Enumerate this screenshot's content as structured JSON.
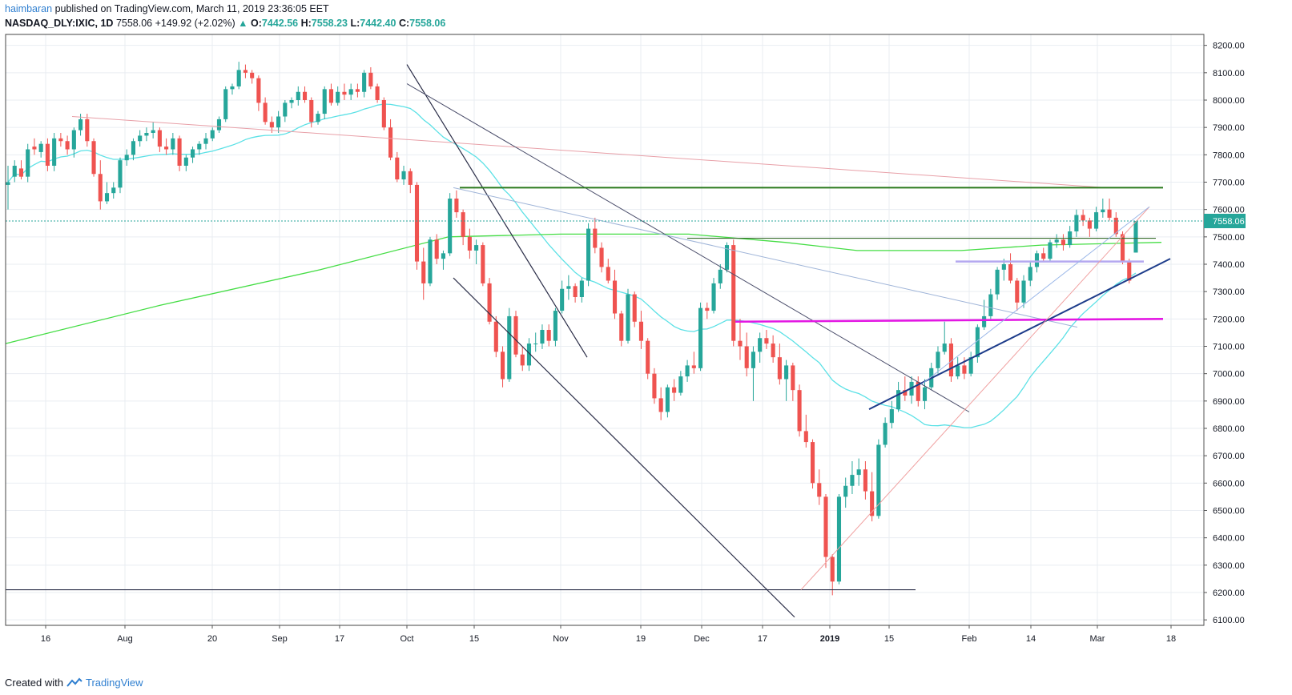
{
  "header": {
    "author": "haimbaran",
    "published_text": "published on TradingView.com, March 11, 2019 23:36:05 EET",
    "symbol": "NASDAQ_DLY:IXIC, 1D",
    "last": "7558.06",
    "change": "+149.92 (+2.02%)",
    "open_label": "O:",
    "open": "7442.56",
    "high_label": "H:",
    "high": "7558.23",
    "low_label": "L:",
    "low": "7442.40",
    "close_label": "C:",
    "close": "7558.06"
  },
  "footer": {
    "created_with": "Created with",
    "brand": "TradingView"
  },
  "colors": {
    "up": "#26a69a",
    "down": "#ef5350",
    "ma_short": "#5ce1e6",
    "ma_long": "#44dd44",
    "grid": "#e9edf2",
    "magenta": "#e317e3",
    "navy": "#1d3c8a",
    "dark_green": "#2a7a1e",
    "lavender": "#b4a8f0",
    "pink_line": "#e8a0a8",
    "price_tag": "#26a69a"
  },
  "chart_data": {
    "type": "candlestick",
    "symbol": "NASDAQ_DLY:IXIC",
    "interval": "1D",
    "y_range": [
      6080,
      8240
    ],
    "y_ticks": [
      "8200.00",
      "8100.00",
      "8000.00",
      "7900.00",
      "7800.00",
      "7700.00",
      "7600.00",
      "7500.00",
      "7400.00",
      "7300.00",
      "7200.00",
      "7100.00",
      "7000.00",
      "6900.00",
      "6800.00",
      "6700.00",
      "6600.00",
      "6500.00",
      "6400.00",
      "6300.00",
      "6200.00",
      "6100.00"
    ],
    "x_ticks": [
      "16",
      "Aug",
      "20",
      "Sep",
      "17",
      "Oct",
      "15",
      "Nov",
      "19",
      "Dec",
      "17",
      "2019",
      "15",
      "Feb",
      "14",
      "Mar",
      "18"
    ],
    "last_price_label": "7558.06",
    "ohlc": [
      [
        7690,
        7760,
        7600,
        7700
      ],
      [
        7720,
        7780,
        7700,
        7760
      ],
      [
        7750,
        7780,
        7710,
        7720
      ],
      [
        7720,
        7840,
        7700,
        7820
      ],
      [
        7830,
        7860,
        7800,
        7820
      ],
      [
        7810,
        7850,
        7790,
        7840
      ],
      [
        7840,
        7860,
        7740,
        7760
      ],
      [
        7760,
        7880,
        7740,
        7860
      ],
      [
        7860,
        7880,
        7830,
        7850
      ],
      [
        7850,
        7870,
        7800,
        7820
      ],
      [
        7820,
        7900,
        7790,
        7890
      ],
      [
        7890,
        7950,
        7870,
        7930
      ],
      [
        7930,
        7950,
        7830,
        7850
      ],
      [
        7850,
        7860,
        7720,
        7730
      ],
      [
        7730,
        7780,
        7600,
        7630
      ],
      [
        7630,
        7700,
        7620,
        7660
      ],
      [
        7660,
        7700,
        7640,
        7680
      ],
      [
        7680,
        7790,
        7660,
        7780
      ],
      [
        7780,
        7820,
        7760,
        7800
      ],
      [
        7800,
        7860,
        7780,
        7850
      ],
      [
        7850,
        7890,
        7830,
        7870
      ],
      [
        7870,
        7900,
        7850,
        7880
      ],
      [
        7880,
        7920,
        7860,
        7890
      ],
      [
        7890,
        7900,
        7810,
        7830
      ],
      [
        7830,
        7860,
        7800,
        7820
      ],
      [
        7820,
        7880,
        7800,
        7860
      ],
      [
        7860,
        7870,
        7740,
        7760
      ],
      [
        7760,
        7800,
        7740,
        7790
      ],
      [
        7790,
        7830,
        7770,
        7820
      ],
      [
        7820,
        7850,
        7800,
        7840
      ],
      [
        7840,
        7880,
        7820,
        7860
      ],
      [
        7860,
        7900,
        7850,
        7890
      ],
      [
        7890,
        7940,
        7880,
        7930
      ],
      [
        7930,
        8050,
        7920,
        8040
      ],
      [
        8040,
        8060,
        8020,
        8050
      ],
      [
        8050,
        8140,
        8040,
        8110
      ],
      [
        8110,
        8130,
        8080,
        8100
      ],
      [
        8100,
        8110,
        8060,
        8080
      ],
      [
        8080,
        8090,
        7960,
        7990
      ],
      [
        7990,
        8010,
        7910,
        7920
      ],
      [
        7920,
        7940,
        7880,
        7900
      ],
      [
        7900,
        7960,
        7880,
        7940
      ],
      [
        7940,
        8000,
        7920,
        7990
      ],
      [
        7990,
        8010,
        7970,
        8000
      ],
      [
        8000,
        8050,
        7980,
        8030
      ],
      [
        8030,
        8050,
        7990,
        8000
      ],
      [
        8000,
        8010,
        7900,
        7920
      ],
      [
        7920,
        7960,
        7910,
        7950
      ],
      [
        7950,
        8050,
        7930,
        8040
      ],
      [
        8040,
        8060,
        7980,
        7990
      ],
      [
        7990,
        8050,
        7980,
        8030
      ],
      [
        8030,
        8060,
        8000,
        8020
      ],
      [
        8020,
        8060,
        8000,
        8040
      ],
      [
        8040,
        8060,
        8010,
        8030
      ],
      [
        8030,
        8110,
        8010,
        8100
      ],
      [
        8100,
        8120,
        8040,
        8050
      ],
      [
        8050,
        8060,
        7990,
        8000
      ],
      [
        8000,
        8010,
        7890,
        7900
      ],
      [
        7900,
        7930,
        7780,
        7790
      ],
      [
        7790,
        7810,
        7700,
        7710
      ],
      [
        7710,
        7760,
        7690,
        7740
      ],
      [
        7740,
        7750,
        7660,
        7690
      ],
      [
        7690,
        7700,
        7380,
        7410
      ],
      [
        7410,
        7460,
        7270,
        7330
      ],
      [
        7330,
        7500,
        7320,
        7490
      ],
      [
        7490,
        7510,
        7400,
        7420
      ],
      [
        7420,
        7450,
        7380,
        7440
      ],
      [
        7440,
        7660,
        7430,
        7640
      ],
      [
        7640,
        7670,
        7570,
        7590
      ],
      [
        7590,
        7600,
        7470,
        7500
      ],
      [
        7500,
        7530,
        7420,
        7450
      ],
      [
        7450,
        7490,
        7400,
        7470
      ],
      [
        7470,
        7480,
        7320,
        7330
      ],
      [
        7330,
        7350,
        7180,
        7190
      ],
      [
        7190,
        7210,
        7060,
        7080
      ],
      [
        7080,
        7100,
        6950,
        6980
      ],
      [
        6980,
        7240,
        6970,
        7210
      ],
      [
        7210,
        7230,
        7060,
        7070
      ],
      [
        7070,
        7100,
        7010,
        7030
      ],
      [
        7030,
        7130,
        7010,
        7110
      ],
      [
        7110,
        7150,
        7080,
        7110
      ],
      [
        7110,
        7180,
        7090,
        7160
      ],
      [
        7160,
        7180,
        7100,
        7120
      ],
      [
        7120,
        7240,
        7100,
        7230
      ],
      [
        7230,
        7340,
        7220,
        7310
      ],
      [
        7310,
        7360,
        7270,
        7320
      ],
      [
        7320,
        7330,
        7260,
        7280
      ],
      [
        7280,
        7350,
        7260,
        7340
      ],
      [
        7340,
        7550,
        7320,
        7530
      ],
      [
        7530,
        7570,
        7440,
        7460
      ],
      [
        7460,
        7480,
        7370,
        7390
      ],
      [
        7390,
        7420,
        7330,
        7340
      ],
      [
        7340,
        7380,
        7200,
        7220
      ],
      [
        7220,
        7230,
        7100,
        7120
      ],
      [
        7120,
        7310,
        7110,
        7290
      ],
      [
        7290,
        7300,
        7170,
        7190
      ],
      [
        7190,
        7230,
        7090,
        7120
      ],
      [
        7120,
        7130,
        6980,
        7000
      ],
      [
        7000,
        7020,
        6890,
        6910
      ],
      [
        6910,
        6950,
        6830,
        6860
      ],
      [
        6860,
        6960,
        6840,
        6950
      ],
      [
        6950,
        6980,
        6900,
        6930
      ],
      [
        6930,
        7010,
        6920,
        6990
      ],
      [
        6990,
        7050,
        6970,
        7030
      ],
      [
        7030,
        7080,
        7000,
        7020
      ],
      [
        7020,
        7260,
        7010,
        7240
      ],
      [
        7240,
        7260,
        7200,
        7230
      ],
      [
        7230,
        7350,
        7220,
        7330
      ],
      [
        7330,
        7400,
        7310,
        7380
      ],
      [
        7380,
        7480,
        7370,
        7470
      ],
      [
        7470,
        7490,
        7100,
        7120
      ],
      [
        7120,
        7200,
        7050,
        7100
      ],
      [
        7100,
        7150,
        6990,
        7020
      ],
      [
        7020,
        7100,
        6900,
        7080
      ],
      [
        7080,
        7150,
        7040,
        7130
      ],
      [
        7130,
        7160,
        7090,
        7110
      ],
      [
        7110,
        7140,
        7040,
        7060
      ],
      [
        7060,
        7110,
        6960,
        6980
      ],
      [
        6980,
        7050,
        6900,
        7030
      ],
      [
        7030,
        7040,
        6900,
        6940
      ],
      [
        6940,
        6960,
        6770,
        6790
      ],
      [
        6790,
        6850,
        6730,
        6750
      ],
      [
        6750,
        6760,
        6580,
        6600
      ],
      [
        6600,
        6650,
        6520,
        6550
      ],
      [
        6550,
        6560,
        6290,
        6330
      ],
      [
        6330,
        6340,
        6190,
        6240
      ],
      [
        6240,
        6560,
        6230,
        6550
      ],
      [
        6550,
        6620,
        6510,
        6590
      ],
      [
        6590,
        6680,
        6560,
        6630
      ],
      [
        6630,
        6690,
        6590,
        6650
      ],
      [
        6650,
        6680,
        6540,
        6570
      ],
      [
        6570,
        6640,
        6460,
        6480
      ],
      [
        6480,
        6760,
        6470,
        6740
      ],
      [
        6740,
        6840,
        6730,
        6820
      ],
      [
        6820,
        6900,
        6800,
        6870
      ],
      [
        6870,
        6970,
        6860,
        6940
      ],
      [
        6940,
        6990,
        6900,
        6920
      ],
      [
        6920,
        6990,
        6890,
        6970
      ],
      [
        6970,
        6990,
        6880,
        6900
      ],
      [
        6900,
        6980,
        6870,
        6950
      ],
      [
        6950,
        7040,
        6940,
        7020
      ],
      [
        7020,
        7100,
        7000,
        7080
      ],
      [
        7080,
        7190,
        7070,
        7110
      ],
      [
        7110,
        7130,
        6970,
        6990
      ],
      [
        6990,
        7060,
        6980,
        7030
      ],
      [
        7030,
        7060,
        6980,
        7000
      ],
      [
        7000,
        7080,
        6990,
        7060
      ],
      [
        7060,
        7180,
        7040,
        7170
      ],
      [
        7170,
        7270,
        7160,
        7210
      ],
      [
        7210,
        7310,
        7200,
        7290
      ],
      [
        7290,
        7390,
        7270,
        7380
      ],
      [
        7380,
        7420,
        7340,
        7400
      ],
      [
        7400,
        7440,
        7330,
        7340
      ],
      [
        7340,
        7350,
        7230,
        7260
      ],
      [
        7260,
        7360,
        7240,
        7340
      ],
      [
        7340,
        7410,
        7320,
        7390
      ],
      [
        7390,
        7450,
        7370,
        7440
      ],
      [
        7440,
        7460,
        7410,
        7420
      ],
      [
        7420,
        7490,
        7410,
        7480
      ],
      [
        7480,
        7510,
        7460,
        7490
      ],
      [
        7490,
        7510,
        7450,
        7470
      ],
      [
        7470,
        7540,
        7460,
        7520
      ],
      [
        7520,
        7600,
        7500,
        7580
      ],
      [
        7580,
        7600,
        7540,
        7560
      ],
      [
        7560,
        7570,
        7500,
        7530
      ],
      [
        7530,
        7610,
        7520,
        7590
      ],
      [
        7590,
        7640,
        7570,
        7600
      ],
      [
        7600,
        7640,
        7560,
        7570
      ],
      [
        7570,
        7590,
        7500,
        7510
      ],
      [
        7510,
        7520,
        7400,
        7410
      ],
      [
        7410,
        7420,
        7330,
        7340
      ],
      [
        7442.56,
        7558.23,
        7442.4,
        7558.06
      ]
    ]
  }
}
